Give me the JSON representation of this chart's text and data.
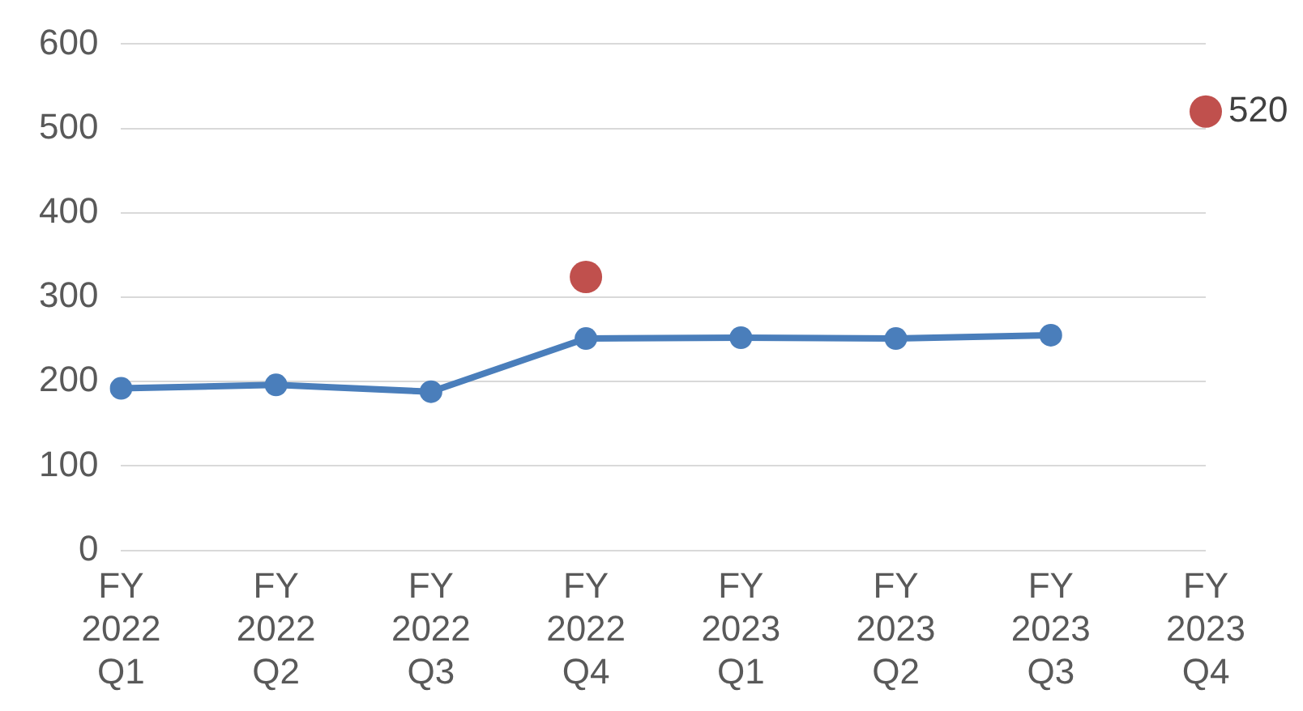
{
  "chart_data": {
    "type": "line",
    "categories": [
      "FY 2022 Q1",
      "FY 2022 Q2",
      "FY 2022 Q3",
      "FY 2022 Q4",
      "FY 2023 Q1",
      "FY 2023 Q2",
      "FY 2023 Q3",
      "FY 2023 Q4"
    ],
    "series": [
      {
        "type": "line",
        "color": "#4a7ebb",
        "values": [
          192,
          196,
          188,
          251,
          252,
          251,
          255,
          null
        ],
        "marker": "circle"
      },
      {
        "type": "scatter",
        "color": "#c0504d",
        "values": [
          null,
          null,
          null,
          324,
          null,
          null,
          null,
          520
        ],
        "value_labels": [
          null,
          null,
          null,
          null,
          null,
          null,
          null,
          "520"
        ],
        "marker": "circle"
      }
    ],
    "ylim": [
      0,
      600
    ],
    "yticks": [
      0,
      100,
      200,
      300,
      400,
      500,
      600
    ],
    "grid": "y",
    "legend": false
  }
}
